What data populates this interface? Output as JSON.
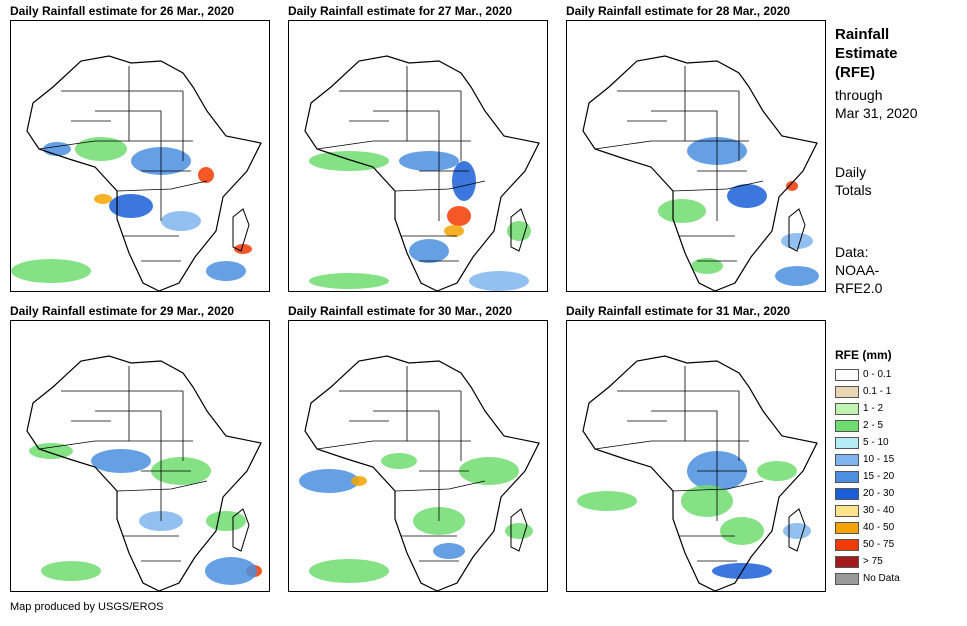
{
  "panels": [
    {
      "title": "Daily Rainfall estimate for 26 Mar., 2020"
    },
    {
      "title": "Daily Rainfall estimate for 27 Mar., 2020"
    },
    {
      "title": "Daily Rainfall estimate for 28 Mar., 2020"
    },
    {
      "title": "Daily Rainfall estimate for 29 Mar., 2020"
    },
    {
      "title": "Daily Rainfall estimate for 30 Mar., 2020"
    },
    {
      "title": "Daily Rainfall estimate for 31 Mar., 2020"
    }
  ],
  "side": {
    "title_line1": "Rainfall",
    "title_line2": "Estimate",
    "title_line3": "(RFE)",
    "through_line1": "through",
    "through_line2": "Mar 31, 2020",
    "totals_line1": "Daily",
    "totals_line2": "Totals",
    "data_line1": "Data:",
    "data_line2": "NOAA-",
    "data_line3": "RFE2.0"
  },
  "legend": {
    "title": "RFE (mm)",
    "items": [
      {
        "label": "0 - 0.1",
        "color": "#ffffff"
      },
      {
        "label": "0.1 - 1",
        "color": "#e9d6b4"
      },
      {
        "label": "1 - 2",
        "color": "#c2f2b0"
      },
      {
        "label": "2 - 5",
        "color": "#6fdc6f"
      },
      {
        "label": "5 - 10",
        "color": "#b5ecf5"
      },
      {
        "label": "10 - 15",
        "color": "#7fb5ee"
      },
      {
        "label": "15 - 20",
        "color": "#4a8fe0"
      },
      {
        "label": "20 - 30",
        "color": "#1a5fd8"
      },
      {
        "label": "30 - 40",
        "color": "#fde38a"
      },
      {
        "label": "40 - 50",
        "color": "#f5a300"
      },
      {
        "label": "50 - 75",
        "color": "#f33a00"
      },
      {
        "label": "> 75",
        "color": "#a31a1a"
      },
      {
        "label": "No Data",
        "color": "#9a9a9a"
      }
    ]
  },
  "credit": "Map produced by USGS/EROS"
}
